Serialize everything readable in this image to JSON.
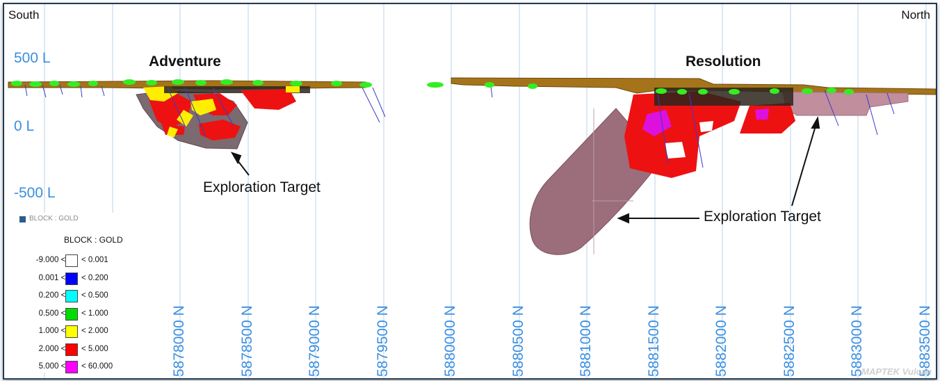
{
  "section": {
    "left_label": "South",
    "right_label": "North",
    "levels": [
      "500 L",
      "0 L",
      "-500 L"
    ],
    "deposits": [
      "Adventure",
      "Resolution"
    ],
    "exploration_target_label": "Exploration Target",
    "northings": [
      "5878000 N",
      "5878500 N",
      "5879000 N",
      "5879500 N",
      "5880000 N",
      "5880500 N",
      "5881000 N",
      "5881500 N",
      "5882000 N",
      "5882500 N",
      "5883000 N",
      "5883500 N"
    ]
  },
  "legend": {
    "header": "BLOCK : GOLD",
    "title": "BLOCK : GOLD",
    "rows": [
      {
        "lo": "-9.000 <=",
        "hi": "< 0.001",
        "color": "#ffffff"
      },
      {
        "lo": "0.001 <=",
        "hi": "< 0.200",
        "color": "#0000ff"
      },
      {
        "lo": "0.200 <=",
        "hi": "< 0.500",
        "color": "#00ffff"
      },
      {
        "lo": "0.500 <=",
        "hi": "< 1.000",
        "color": "#00dd00"
      },
      {
        "lo": "1.000 <=",
        "hi": "< 2.000",
        "color": "#ffff00"
      },
      {
        "lo": "2.000 <=",
        "hi": "< 5.000",
        "color": "#ff0000"
      },
      {
        "lo": "5.000 <=",
        "hi": "< 60.000",
        "color": "#ff00ff"
      }
    ]
  },
  "watermark": "MAPTEK Vulcan",
  "colors": {
    "grid": "#b8d3ec",
    "surface": "#a5741a",
    "target": "#9c6d7a",
    "drill": "#3a3ac8",
    "collar": "#33ee22"
  }
}
